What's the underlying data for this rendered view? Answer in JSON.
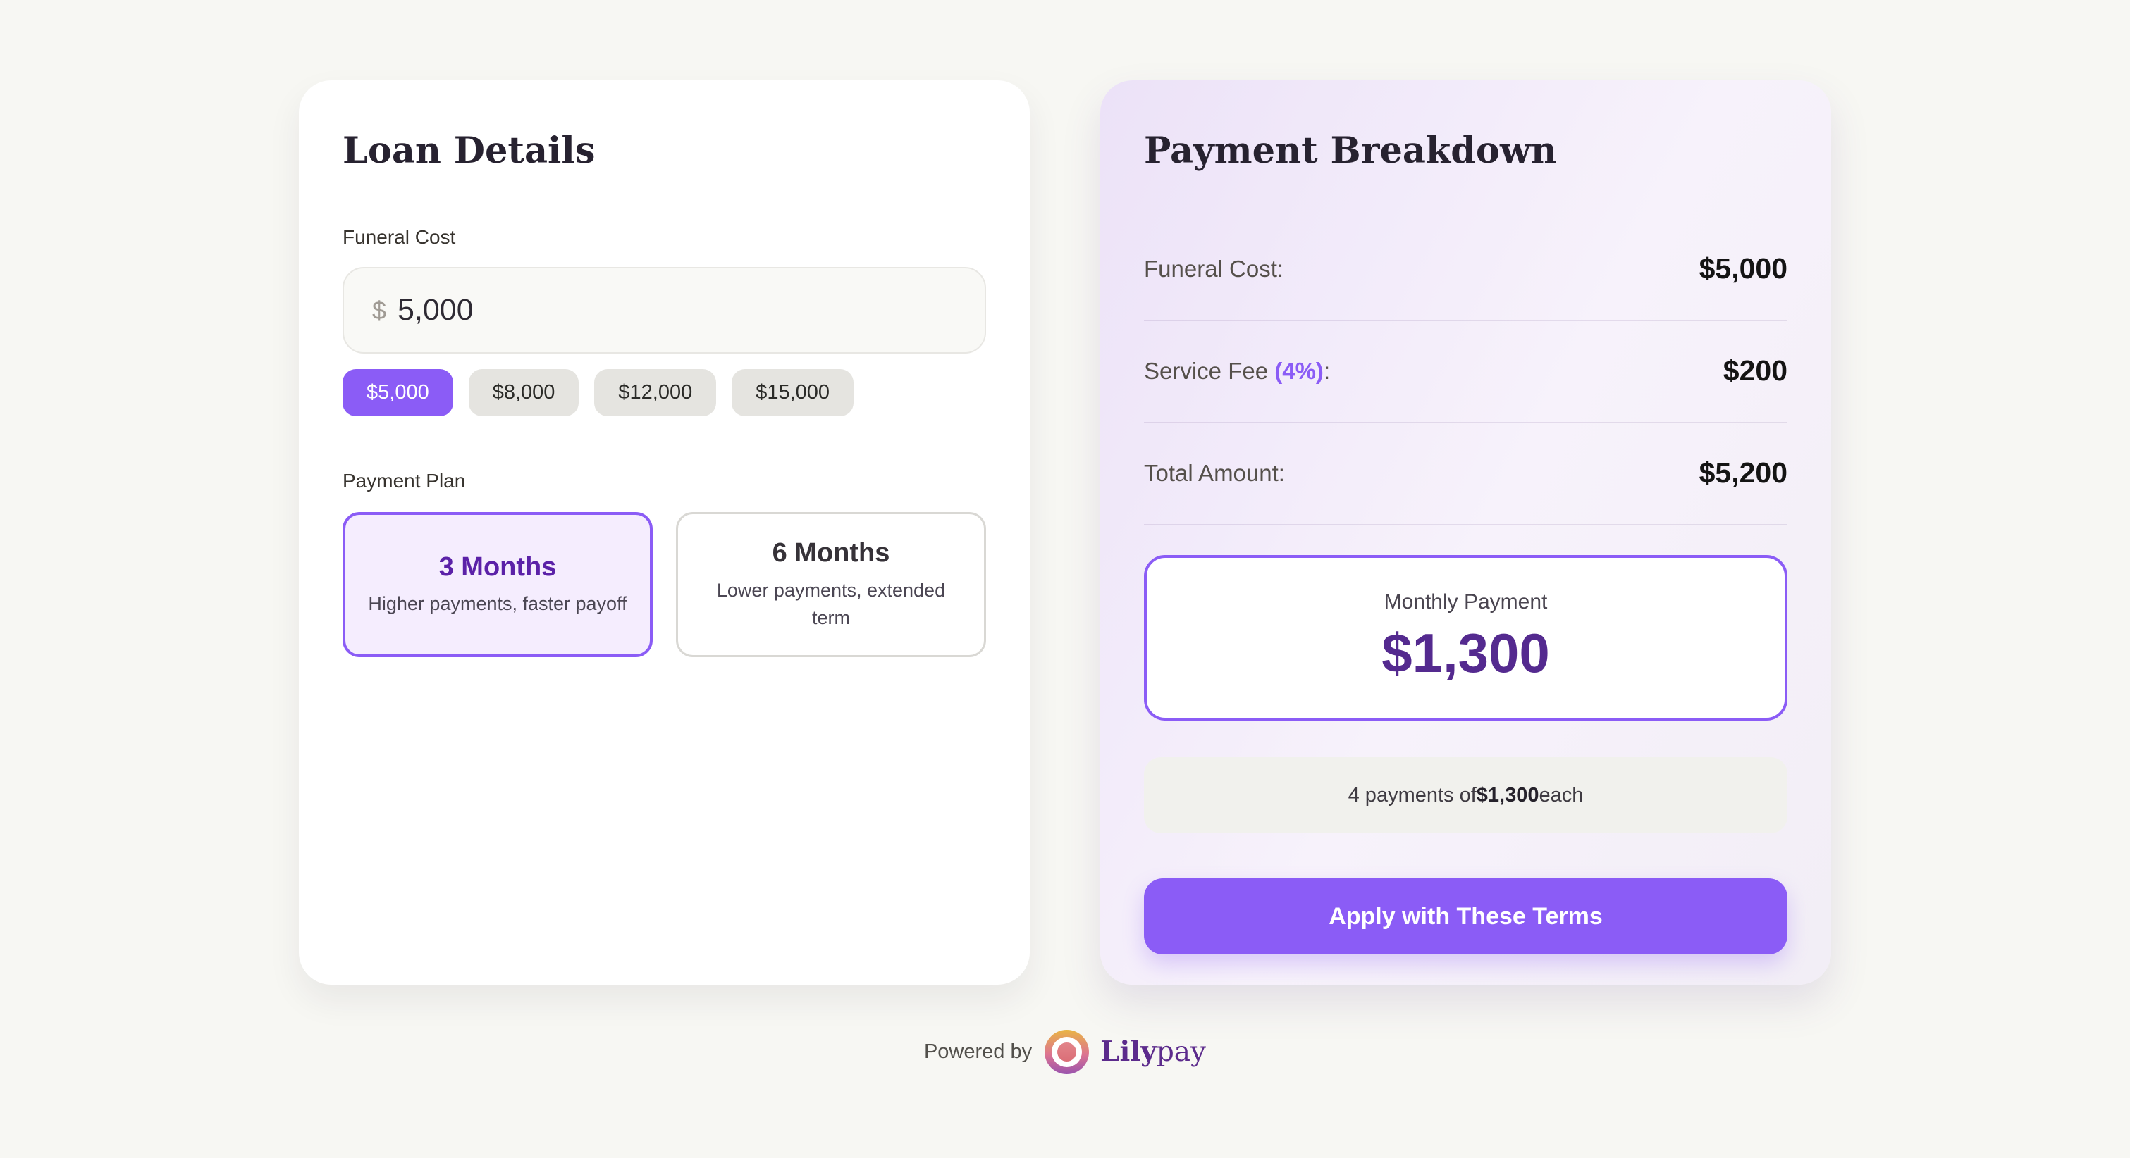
{
  "loan_details": {
    "title": "Loan Details",
    "funeral_cost": {
      "label": "Funeral Cost",
      "currency_prefix": "$",
      "value": "5,000"
    },
    "amount_options": [
      {
        "label": "$5,000",
        "selected": true
      },
      {
        "label": "$8,000",
        "selected": false
      },
      {
        "label": "$12,000",
        "selected": false
      },
      {
        "label": "$15,000",
        "selected": false
      }
    ],
    "payment_plan": {
      "label": "Payment Plan",
      "options": [
        {
          "title": "3 Months",
          "description": "Higher payments, faster payoff",
          "selected": true
        },
        {
          "title": "6 Months",
          "description": "Lower payments, extended term",
          "selected": false
        }
      ]
    }
  },
  "payment_breakdown": {
    "title": "Payment Breakdown",
    "rows": [
      {
        "label": "Funeral Cost:",
        "highlight": "",
        "suffix": "",
        "value": "$5,000"
      },
      {
        "label": "Service Fee ",
        "highlight": "(4%)",
        "suffix": ":",
        "value": "$200"
      },
      {
        "label": "Total Amount:",
        "highlight": "",
        "suffix": "",
        "value": "$5,200"
      }
    ],
    "monthly_payment": {
      "label": "Monthly Payment",
      "value": "$1,300"
    },
    "schedule_note": {
      "prefix": "4 payments of ",
      "amount": "$1,300",
      "suffix": " each"
    },
    "apply_button_label": "Apply with These Terms"
  },
  "footer": {
    "powered_by": "Powered by",
    "brand": {
      "bold": "Lily",
      "regular": "pay"
    }
  },
  "colors": {
    "accent_purple": "#8B5CF6",
    "deep_purple": "#542A8F",
    "plan_selected_bg": "#F5EDFE",
    "card_gradient_start": "#ECE2F8",
    "page_bg": "#F7F7F3"
  }
}
